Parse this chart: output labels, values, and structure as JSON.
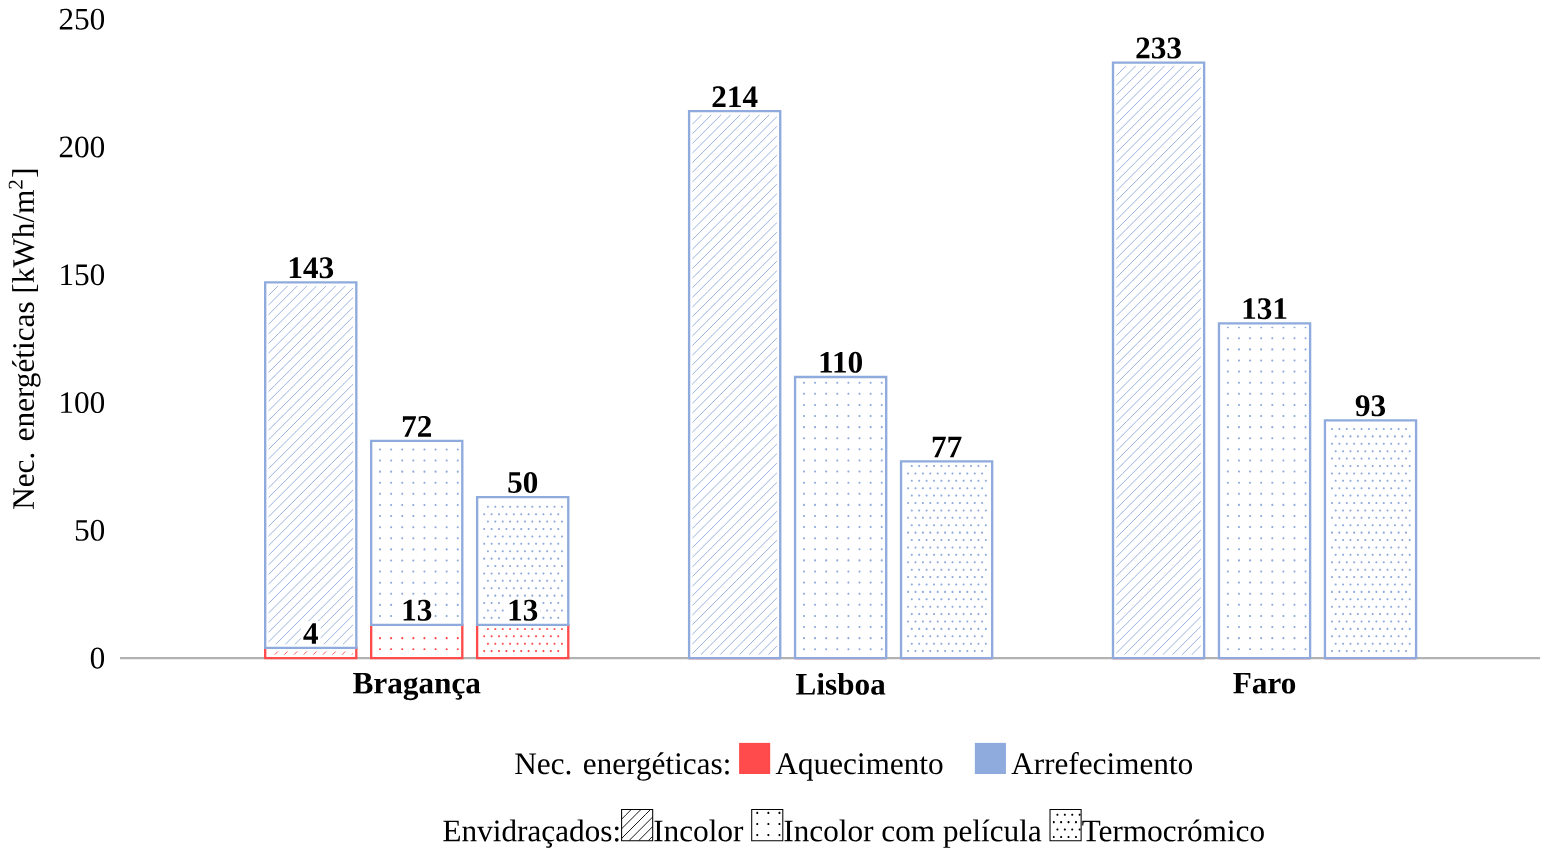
{
  "chart_data": {
    "type": "bar",
    "stacked": true,
    "ylabel": "Nec. energéticas [kWh/m$^{2}$]",
    "categories": [
      null,
      "Bragança",
      null,
      null,
      null,
      "Lisboa",
      null,
      null,
      null,
      "Faro",
      null
    ],
    "ylim": [
      0,
      250
    ],
    "yticks": [
      0,
      50,
      100,
      150,
      200,
      250
    ],
    "legend": "bottom",
    "legend_title": "Nec. energéticas:",
    "series": [
      {
        "name": "Aquecimento",
        "color": "#ff4b4b",
        "values": [
          4,
          13,
          13,
          null,
          0,
          0,
          0,
          null,
          0,
          0,
          0
        ],
        "value_labels": [
          "4",
          "13",
          "13",
          null,
          null,
          null,
          null,
          null,
          null,
          null,
          null
        ]
      },
      {
        "name": "Arrefecimento",
        "color": "#8faadc",
        "values": [
          143,
          72,
          50,
          null,
          214,
          110,
          77,
          null,
          233,
          131,
          93
        ],
        "value_labels": [
          "143",
          "72",
          "50",
          null,
          "214",
          "110",
          "77",
          null,
          "233",
          "131",
          "93"
        ]
      }
    ],
    "annotations": [
      "Envidraçados:",
      "Incolor",
      "Incolor com película",
      "Termocrómico"
    ]
  }
}
